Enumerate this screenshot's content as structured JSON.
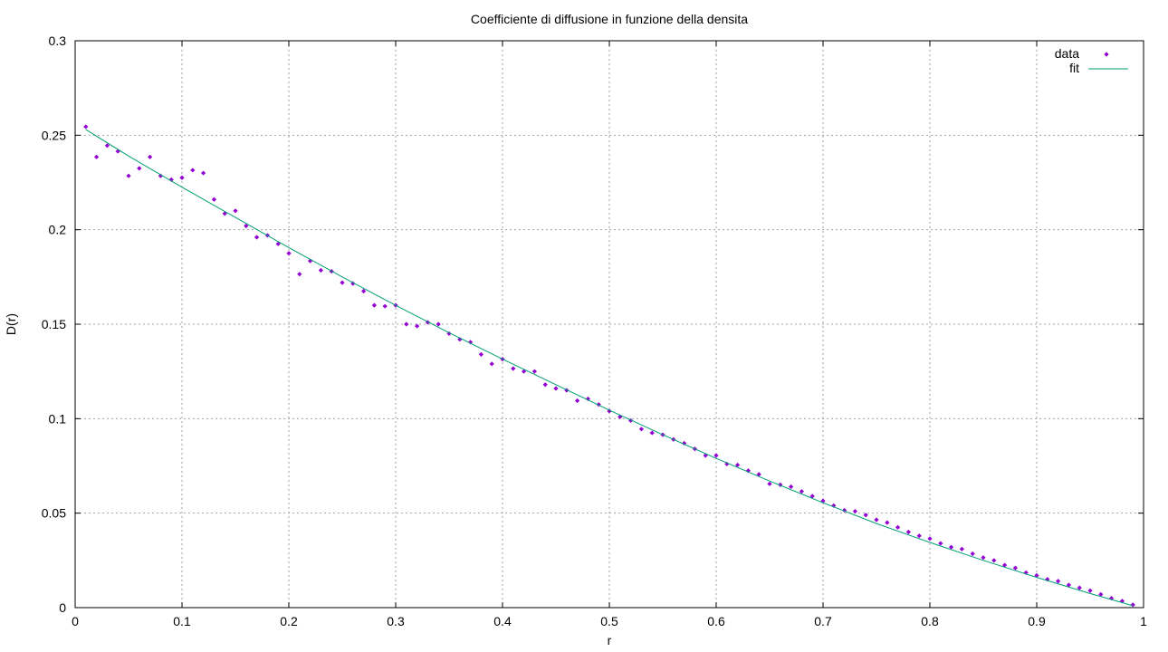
{
  "chart_data": {
    "type": "scatter",
    "title": "Coefficiente di diffusione in funzione della densita",
    "xlabel": "r",
    "ylabel": "D(r)",
    "xlim": [
      0,
      1
    ],
    "ylim": [
      0,
      0.3
    ],
    "grid": true,
    "legend_position": "top-right",
    "xticks": [
      0,
      0.1,
      0.2,
      0.3,
      0.4,
      0.5,
      0.6,
      0.7,
      0.8,
      0.9,
      1
    ],
    "xtick_labels": [
      "0",
      "0.1",
      "0.2",
      "0.3",
      "0.4",
      "0.5",
      "0.6",
      "0.7",
      "0.8",
      "0.9",
      "1"
    ],
    "yticks": [
      0,
      0.05,
      0.1,
      0.15,
      0.2,
      0.25,
      0.3
    ],
    "ytick_labels": [
      "0",
      "0.05",
      "0.1",
      "0.15",
      "0.2",
      "0.25",
      "0.3"
    ],
    "series": [
      {
        "name": "data",
        "style": "points",
        "color": "#9400d3",
        "x": [
          0.01,
          0.02,
          0.03,
          0.04,
          0.05,
          0.06,
          0.07,
          0.08,
          0.09,
          0.1,
          0.11,
          0.12,
          0.13,
          0.14,
          0.15,
          0.16,
          0.17,
          0.18,
          0.19,
          0.2,
          0.21,
          0.22,
          0.23,
          0.24,
          0.25,
          0.26,
          0.27,
          0.28,
          0.29,
          0.3,
          0.31,
          0.32,
          0.33,
          0.34,
          0.35,
          0.36,
          0.37,
          0.38,
          0.39,
          0.4,
          0.41,
          0.42,
          0.43,
          0.44,
          0.45,
          0.46,
          0.47,
          0.48,
          0.49,
          0.5,
          0.51,
          0.52,
          0.53,
          0.54,
          0.55,
          0.56,
          0.57,
          0.58,
          0.59,
          0.6,
          0.61,
          0.62,
          0.63,
          0.64,
          0.65,
          0.66,
          0.67,
          0.68,
          0.69,
          0.7,
          0.71,
          0.72,
          0.73,
          0.74,
          0.75,
          0.76,
          0.77,
          0.78,
          0.79,
          0.8,
          0.81,
          0.82,
          0.83,
          0.84,
          0.85,
          0.86,
          0.87,
          0.88,
          0.89,
          0.9,
          0.91,
          0.92,
          0.93,
          0.94,
          0.95,
          0.96,
          0.97,
          0.98,
          0.99
        ],
        "y": [
          0.2545,
          0.2385,
          0.2445,
          0.2415,
          0.2285,
          0.2325,
          0.2385,
          0.2285,
          0.2265,
          0.2275,
          0.2315,
          0.23,
          0.216,
          0.2085,
          0.21,
          0.202,
          0.196,
          0.197,
          0.1925,
          0.1875,
          0.1765,
          0.1835,
          0.1785,
          0.178,
          0.172,
          0.1715,
          0.1675,
          0.16,
          0.1595,
          0.16,
          0.15,
          0.149,
          0.151,
          0.15,
          0.145,
          0.142,
          0.1405,
          0.134,
          0.129,
          0.1315,
          0.1265,
          0.125,
          0.125,
          0.118,
          0.116,
          0.115,
          0.1095,
          0.1105,
          0.1075,
          0.104,
          0.101,
          0.099,
          0.0945,
          0.0925,
          0.0915,
          0.089,
          0.087,
          0.084,
          0.0805,
          0.0805,
          0.076,
          0.0755,
          0.0725,
          0.0705,
          0.0655,
          0.065,
          0.064,
          0.0615,
          0.059,
          0.0565,
          0.054,
          0.0515,
          0.051,
          0.049,
          0.0465,
          0.045,
          0.0425,
          0.04,
          0.038,
          0.0365,
          0.034,
          0.032,
          0.031,
          0.0285,
          0.0265,
          0.025,
          0.0225,
          0.021,
          0.0185,
          0.017,
          0.015,
          0.014,
          0.012,
          0.0105,
          0.009,
          0.007,
          0.005,
          0.0035,
          0.0015
        ]
      },
      {
        "name": "fit",
        "style": "line",
        "color": "#009e73",
        "x": [
          0.01,
          0.05,
          0.1,
          0.15,
          0.2,
          0.25,
          0.3,
          0.35,
          0.4,
          0.45,
          0.5,
          0.55,
          0.6,
          0.65,
          0.7,
          0.75,
          0.8,
          0.85,
          0.9,
          0.95,
          0.99
        ],
        "y": [
          0.253,
          0.239,
          0.2225,
          0.2065,
          0.1905,
          0.175,
          0.16,
          0.1455,
          0.1315,
          0.118,
          0.1045,
          0.0915,
          0.079,
          0.067,
          0.0555,
          0.0445,
          0.0345,
          0.025,
          0.016,
          0.0075,
          0.001
        ]
      }
    ]
  }
}
